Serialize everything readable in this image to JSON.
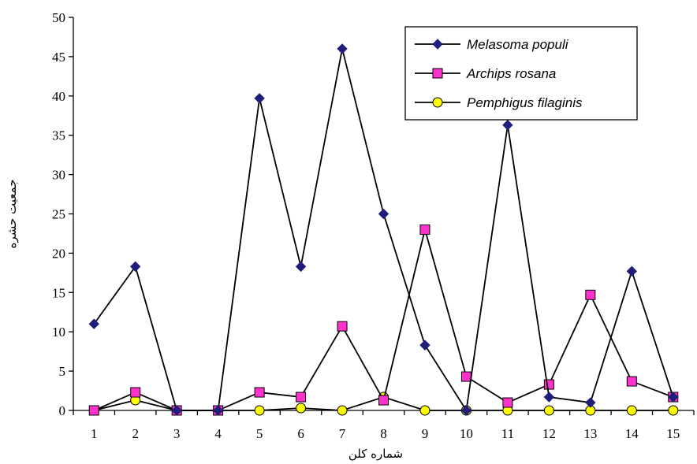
{
  "chart_data": {
    "type": "line",
    "xlabel": "شماره کلن",
    "ylabel": "جمعیت حشره",
    "x": [
      1,
      2,
      3,
      4,
      5,
      6,
      7,
      8,
      9,
      10,
      11,
      12,
      13,
      14,
      15
    ],
    "ylim": [
      0,
      50
    ],
    "yticks": [
      0,
      5,
      10,
      15,
      20,
      25,
      30,
      35,
      40,
      45,
      50
    ],
    "grid": false,
    "legend_position": "top-right",
    "series": [
      {
        "name": "Melasoma populi",
        "marker": "diamond",
        "color": "#1f1f7a",
        "values": [
          11,
          18.3,
          0,
          0,
          39.7,
          18.3,
          46,
          25,
          8.3,
          0,
          36.3,
          1.7,
          1,
          17.7,
          1.7
        ]
      },
      {
        "name": "Archips rosana",
        "marker": "square",
        "color": "#ff33cc",
        "values": [
          0,
          2.3,
          0,
          0,
          2.3,
          1.7,
          10.7,
          1.3,
          23,
          4.3,
          1,
          3.3,
          14.7,
          3.7,
          1.7
        ]
      },
      {
        "name": "Pemphigus filaginis",
        "marker": "circle",
        "color": "#ffff00",
        "values": [
          0,
          1.3,
          0,
          0,
          0,
          0.3,
          0,
          1.7,
          0,
          0,
          0,
          0,
          0,
          0,
          0
        ]
      }
    ]
  }
}
